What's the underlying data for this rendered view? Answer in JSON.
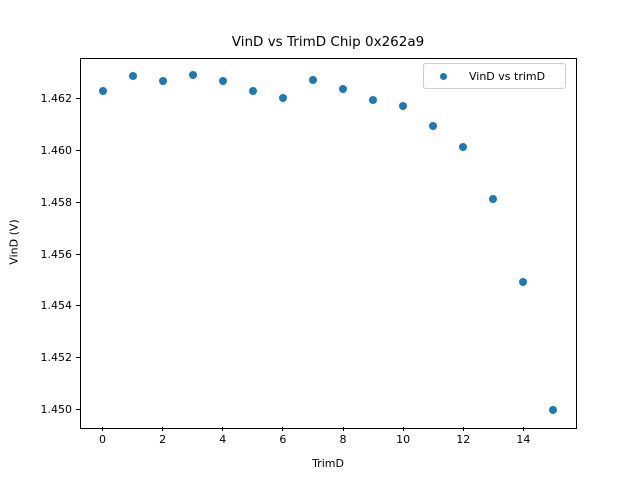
{
  "chart_data": {
    "type": "scatter",
    "title": "VinD vs TrimD Chip 0x262a9",
    "xlabel": "TrimD",
    "ylabel": "VinD (V)",
    "legend": {
      "position": "upper right",
      "entries": [
        {
          "label": "VinD vs trimD",
          "marker_color": "#1f77b4"
        }
      ]
    },
    "marker_color": "#1f77b4",
    "grid": false,
    "x": [
      0,
      1,
      2,
      3,
      4,
      5,
      6,
      7,
      8,
      9,
      10,
      11,
      12,
      13,
      14,
      15
    ],
    "y": [
      1.46231,
      1.46289,
      1.4627,
      1.46294,
      1.4627,
      1.46229,
      1.46204,
      1.46274,
      1.46238,
      1.46195,
      1.46171,
      1.46095,
      1.46016,
      1.45813,
      1.45491,
      1.44999
    ],
    "xlim": [
      -0.75,
      15.75
    ],
    "ylim": [
      1.44931,
      1.4636
    ],
    "x_ticks": {
      "values": [
        0,
        2,
        4,
        6,
        8,
        10,
        12,
        14
      ],
      "labels": [
        "0",
        "2",
        "4",
        "6",
        "8",
        "10",
        "12",
        "14"
      ]
    },
    "y_ticks": {
      "values": [
        1.45,
        1.452,
        1.454,
        1.456,
        1.458,
        1.46,
        1.462
      ],
      "labels": [
        "1.450",
        "1.452",
        "1.454",
        "1.456",
        "1.458",
        "1.460",
        "1.462"
      ]
    }
  }
}
